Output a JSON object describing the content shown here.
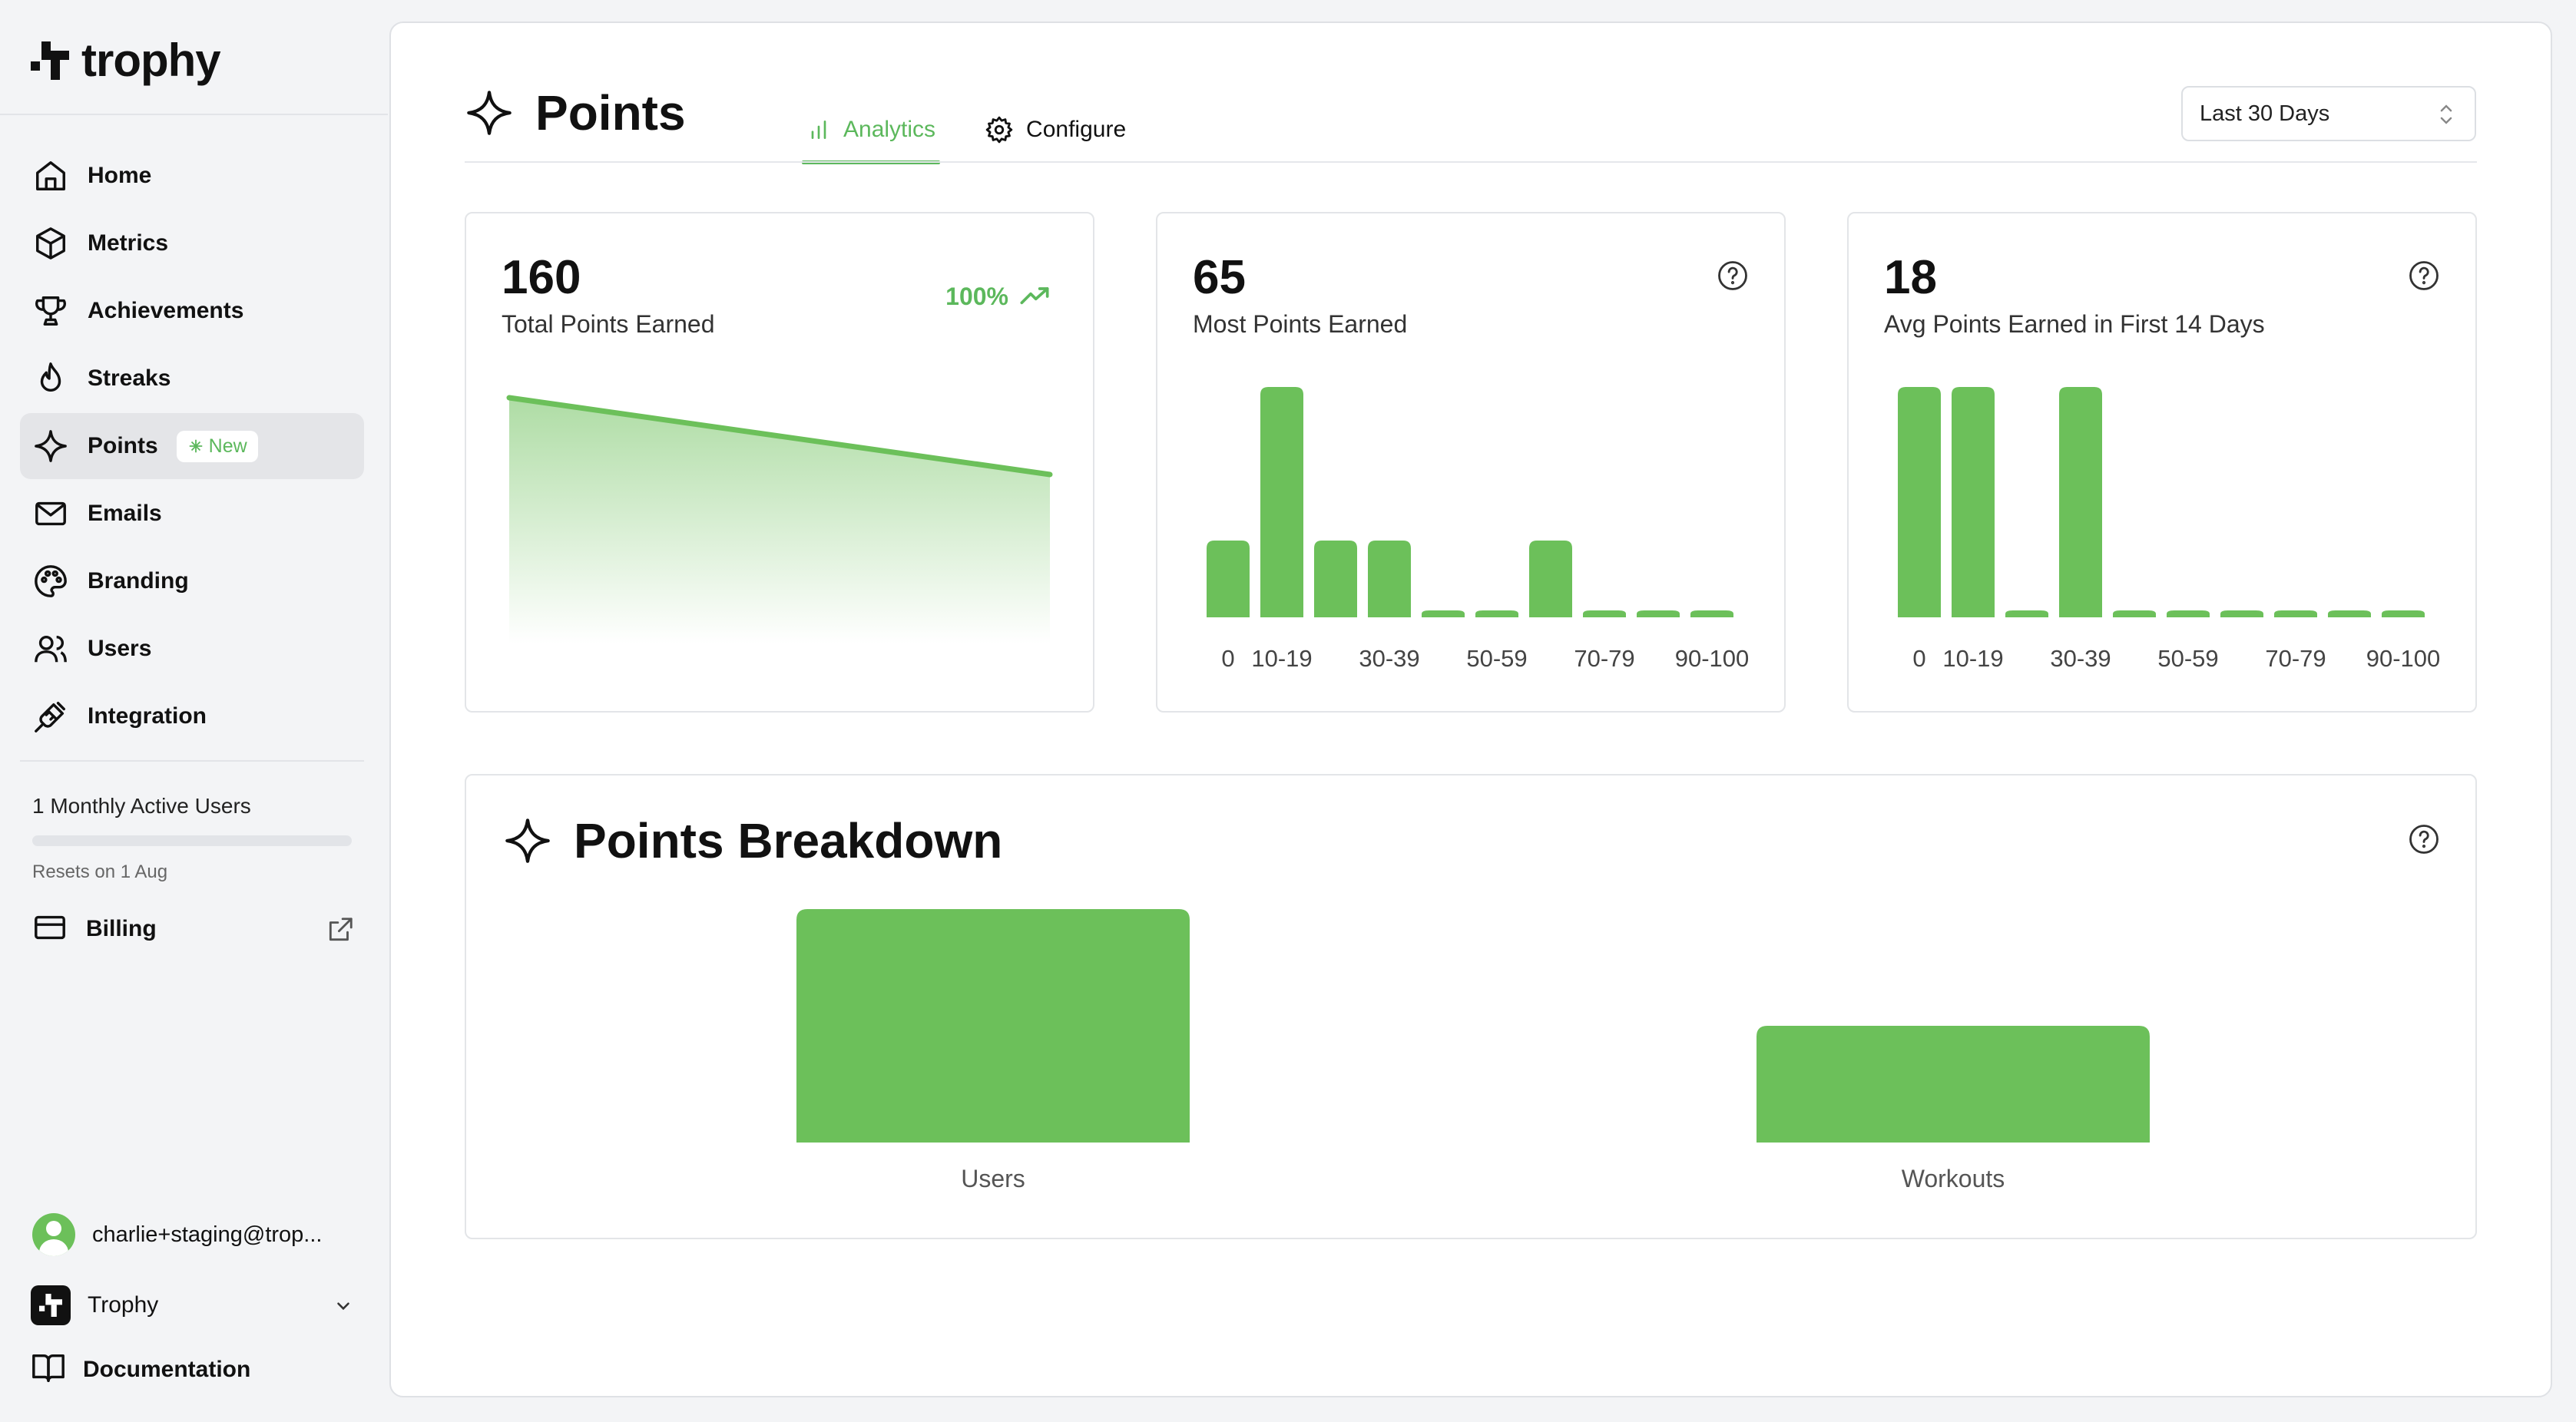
{
  "app": {
    "name": "trophy"
  },
  "sidebar": {
    "items": [
      {
        "label": "Home",
        "icon": "home-icon"
      },
      {
        "label": "Metrics",
        "icon": "cube-icon"
      },
      {
        "label": "Achievements",
        "icon": "trophy-icon"
      },
      {
        "label": "Streaks",
        "icon": "flame-icon"
      },
      {
        "label": "Points",
        "icon": "sparkle-icon",
        "badge": "New",
        "active": true
      },
      {
        "label": "Emails",
        "icon": "mail-icon"
      },
      {
        "label": "Branding",
        "icon": "palette-icon"
      },
      {
        "label": "Users",
        "icon": "users-icon"
      },
      {
        "label": "Integration",
        "icon": "plug-icon"
      }
    ],
    "usage": {
      "label": "1 Monthly Active Users",
      "resets": "Resets on 1 Aug",
      "progress": 0
    },
    "billing": "Billing",
    "user_email": "charlie+staging@trop...",
    "org": "Trophy",
    "docs": "Documentation"
  },
  "header": {
    "title": "Points",
    "tabs": [
      {
        "label": "Analytics",
        "active": true
      },
      {
        "label": "Configure",
        "active": false
      }
    ],
    "range": "Last 30 Days"
  },
  "cards": [
    {
      "value": "160",
      "label": "Total Points Earned",
      "trend": "100%"
    },
    {
      "value": "65",
      "label": "Most Points Earned"
    },
    {
      "value": "18",
      "label": "Avg Points Earned in First 14 Days"
    }
  ],
  "breakdown": {
    "title": "Points Breakdown"
  },
  "colors": {
    "accent": "#6cc05a",
    "text": "#111111",
    "muted": "#666666"
  },
  "chart_data": [
    {
      "type": "area",
      "x": [
        0,
        1
      ],
      "values": [
        160,
        110
      ],
      "title": "Total Points Earned"
    },
    {
      "type": "bar",
      "title": "Most Points Earned",
      "categories": [
        "0",
        "10-19",
        "20-29",
        "30-39",
        "40-49",
        "50-59",
        "60-69",
        "70-79",
        "80-89",
        "90-100"
      ],
      "tick_labels": [
        "0",
        "10-19",
        "30-39",
        "50-59",
        "70-79",
        "90-100"
      ],
      "values": [
        1,
        3,
        1,
        1,
        0,
        0,
        1,
        0,
        0,
        0
      ]
    },
    {
      "type": "bar",
      "title": "Avg Points Earned in First 14 Days",
      "categories": [
        "0",
        "10-19",
        "20-29",
        "30-39",
        "40-49",
        "50-59",
        "60-69",
        "70-79",
        "80-89",
        "90-100"
      ],
      "tick_labels": [
        "0",
        "10-19",
        "30-39",
        "50-59",
        "70-79",
        "90-100"
      ],
      "values": [
        1,
        1,
        0,
        1,
        0,
        0,
        0,
        0,
        0,
        0
      ]
    },
    {
      "type": "bar",
      "title": "Points Breakdown",
      "categories": [
        "Users",
        "Workouts"
      ],
      "values": [
        2,
        1
      ]
    }
  ]
}
